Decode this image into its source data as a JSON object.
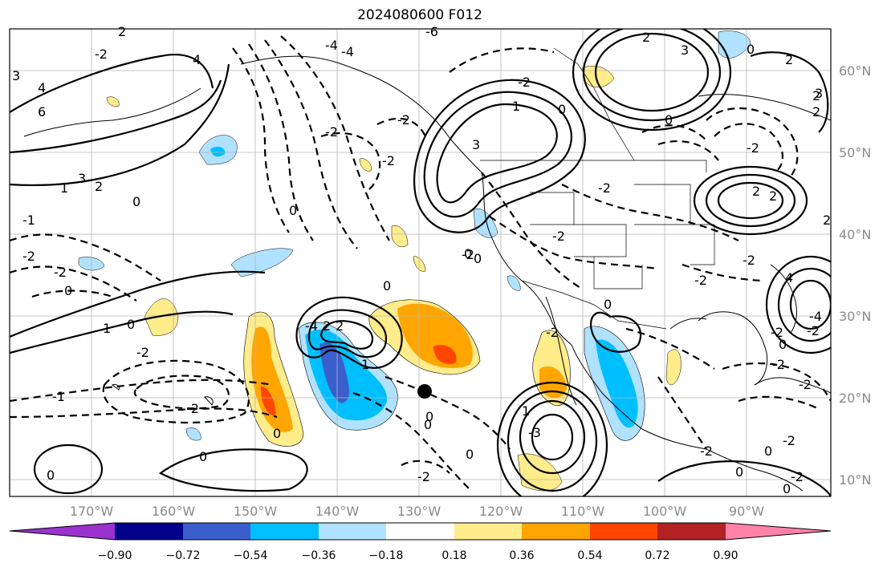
{
  "title": "2024080600 F012",
  "map": {
    "latitude_labels": [
      "60°N",
      "50°N",
      "40°N",
      "30°N",
      "20°N",
      "10°N"
    ],
    "longitude_labels": [
      "170°W",
      "160°W",
      "150°W",
      "140°W",
      "130°W",
      "120°W",
      "110°W",
      "100°W",
      "90°W"
    ],
    "contour_labels": [
      "3",
      "4",
      "6",
      "-2",
      "-4",
      "-4",
      "2",
      "-6",
      "-2",
      "4",
      "2",
      "-2",
      "0",
      "-2",
      "3",
      "1",
      "0",
      "0",
      "3",
      "2",
      "-2",
      "-2",
      "2",
      "-2",
      "2",
      "1",
      "-1",
      "2",
      "-2",
      "0",
      "-2",
      "0",
      "1",
      "0",
      "-2",
      "-2",
      "0",
      "-2",
      "0",
      "-2",
      "-4",
      "2",
      "-2",
      "1",
      "2",
      "0",
      "-3",
      "-2",
      "-1",
      "0",
      "-4",
      "-2",
      "2",
      "0",
      "-2",
      "4",
      "0",
      "-2",
      "0",
      "2",
      "2",
      "0",
      "1",
      "0",
      "3",
      "-2",
      "3",
      "-2",
      "0",
      "0",
      "0",
      "0",
      "-2",
      "-2",
      "0",
      "-2",
      "-2",
      "0"
    ]
  },
  "colorbar": {
    "tick_labels": [
      "−0.90",
      "−0.72",
      "−0.54",
      "−0.36",
      "−0.18",
      "0.18",
      "0.36",
      "0.54",
      "0.72",
      "0.90"
    ],
    "colors": [
      "#9a32cd",
      "#00008b",
      "#3a5fcd",
      "#00bfff",
      "#b0e2ff",
      "#ffffff",
      "#ffec8b",
      "#ffa500",
      "#ff4500",
      "#b22222",
      "#ff82ab"
    ]
  }
}
